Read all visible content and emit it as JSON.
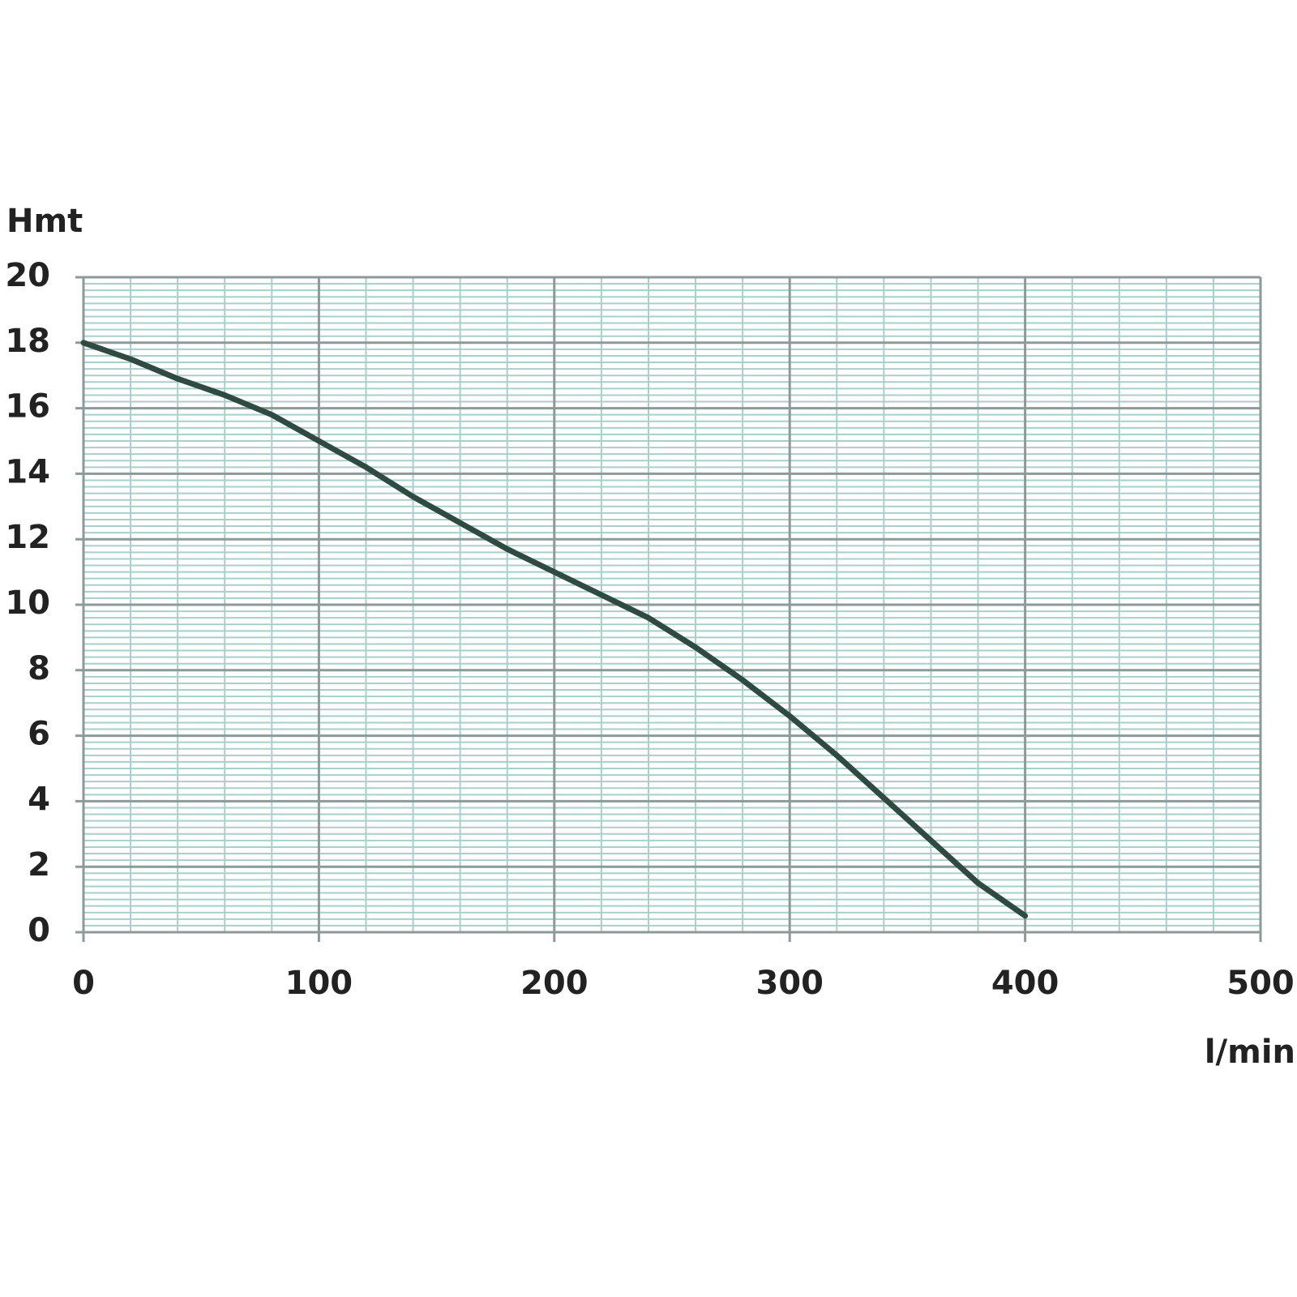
{
  "chart_data": {
    "type": "line",
    "x_label": "l/min",
    "y_label": "Hmt",
    "x": [
      0,
      20,
      40,
      60,
      80,
      100,
      120,
      140,
      160,
      180,
      200,
      220,
      240,
      260,
      280,
      300,
      320,
      340,
      360,
      380,
      400
    ],
    "series": [
      {
        "name": "curve",
        "color": "#2f4a40",
        "values": [
          18,
          17.5,
          16.9,
          16.4,
          15.8,
          15.0,
          14.2,
          13.3,
          12.5,
          11.7,
          11.0,
          10.3,
          9.6,
          8.7,
          7.7,
          6.6,
          5.4,
          4.1,
          2.8,
          1.5,
          0.5
        ]
      }
    ],
    "xlim": [
      0,
      500
    ],
    "ylim": [
      0,
      20
    ],
    "xticks": [
      0,
      100,
      200,
      300,
      400,
      500
    ],
    "yticks": [
      0,
      2,
      4,
      6,
      8,
      10,
      12,
      14,
      16,
      18,
      20
    ],
    "grid": true
  }
}
